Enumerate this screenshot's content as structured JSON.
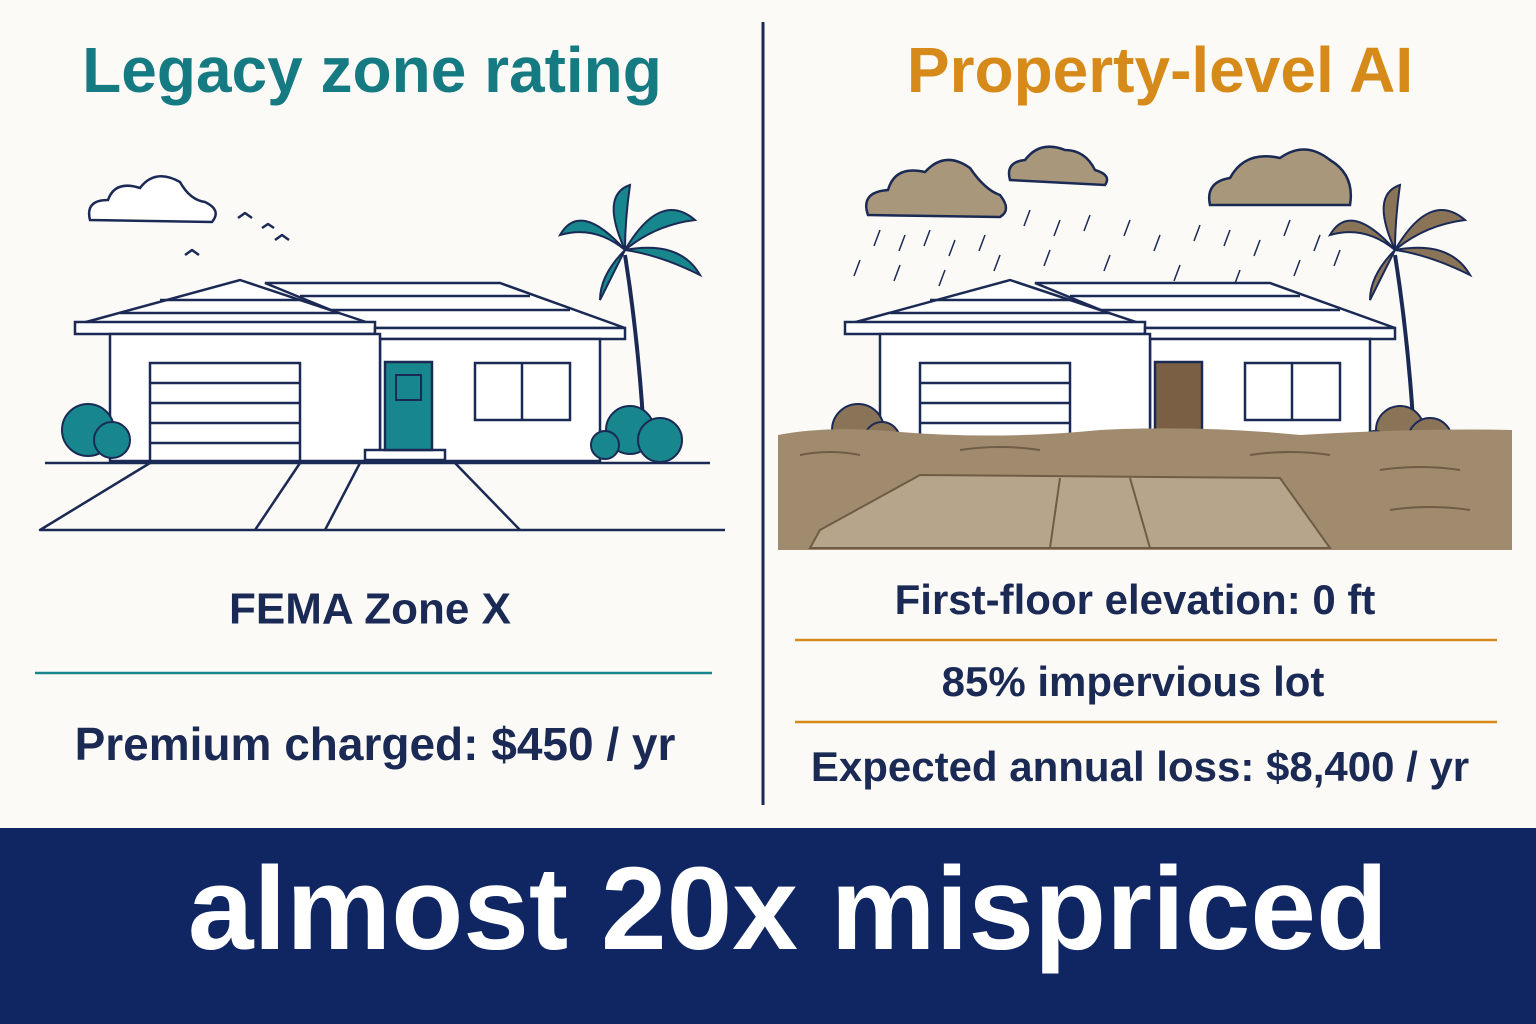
{
  "left": {
    "title": "Legacy zone rating",
    "zone": "FEMA Zone X",
    "premium": "Premium charged: $450 / yr"
  },
  "right": {
    "title": "Property-level AI",
    "items": [
      "First-floor elevation: 0 ft",
      "85% impervious lot",
      "Expected annual loss: $8,400 / yr"
    ]
  },
  "banner": {
    "text": "almost 20x mispriced"
  }
}
